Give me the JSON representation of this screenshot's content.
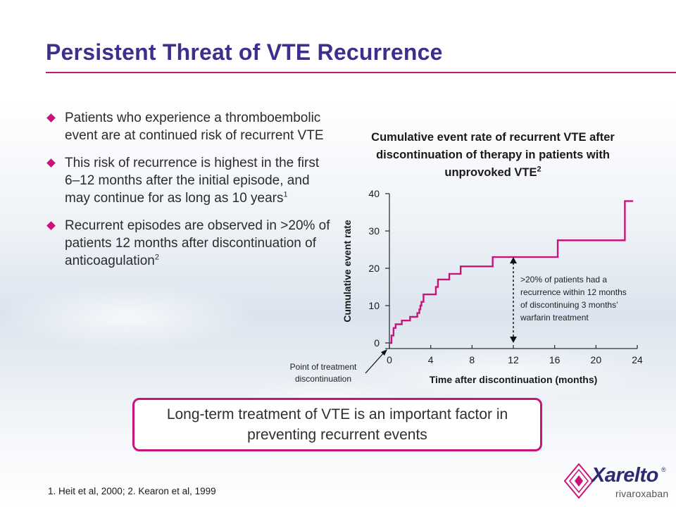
{
  "slide": {
    "title": "Persistent Threat of VTE Recurrence"
  },
  "bullets": [
    {
      "text": "Patients who experience a thromboembolic event are at continued risk of recurrent VTE",
      "sup": ""
    },
    {
      "text": "This risk of recurrence is highest in the first 6–12 months after the initial episode, and may continue for as long as 10 years",
      "sup": "1"
    },
    {
      "text": "Recurrent episodes are observed in >20% of patients 12 months after discontinuation of anticoagulation",
      "sup": "2"
    }
  ],
  "callout": {
    "text": "Long-term treatment of VTE is an important factor in preventing recurrent events"
  },
  "footnote": {
    "text": "1. Heit et al, 2000; 2. Kearon et al, 1999"
  },
  "logo": {
    "name": "Xarelto",
    "reg": "®",
    "sub": "rivaroxaban",
    "colors": {
      "primary": "#2d2a73",
      "accent": "#c8147a"
    }
  },
  "colors": {
    "title": "#3d2f8c",
    "accent": "#c8147a"
  },
  "chart_data": {
    "type": "line",
    "title": "Cumulative event rate of recurrent VTE after discontinuation of therapy in patients with unprovoked VTE",
    "title_sup": "2",
    "xlabel": "Time after discontinuation (months)",
    "ylabel": "Cumulative event rate",
    "xlim": [
      0,
      24
    ],
    "ylim": [
      0,
      40
    ],
    "xticks": [
      0,
      4,
      8,
      12,
      16,
      20,
      24
    ],
    "yticks": [
      0,
      10,
      20,
      30,
      40
    ],
    "grid": false,
    "step": true,
    "series": [
      {
        "color": "#c8147a",
        "points": [
          [
            0,
            0
          ],
          [
            0.2,
            2
          ],
          [
            0.4,
            4
          ],
          [
            0.6,
            5
          ],
          [
            1.0,
            5
          ],
          [
            1.2,
            6
          ],
          [
            1.8,
            6
          ],
          [
            2.0,
            7
          ],
          [
            2.6,
            7
          ],
          [
            2.7,
            8
          ],
          [
            2.9,
            9
          ],
          [
            3.0,
            10
          ],
          [
            3.1,
            11
          ],
          [
            3.3,
            13
          ],
          [
            4.4,
            13
          ],
          [
            4.5,
            15
          ],
          [
            4.7,
            17
          ],
          [
            5.6,
            17
          ],
          [
            5.8,
            18.5
          ],
          [
            6.7,
            18.5
          ],
          [
            6.9,
            20.5
          ],
          [
            9.8,
            20.5
          ],
          [
            10.0,
            23
          ],
          [
            16.2,
            23
          ],
          [
            16.3,
            27.5
          ],
          [
            22.7,
            27.5
          ],
          [
            22.8,
            38
          ],
          [
            23.6,
            38
          ]
        ]
      }
    ],
    "annotations": [
      {
        "text": ">20% of patients had a recurrence within 12 months of discontinuing 3 months’ warfarin treatment",
        "x": 12,
        "y_range": [
          0,
          23
        ]
      },
      {
        "text": "Point of treatment discontinuation",
        "x": 0,
        "y": 0
      }
    ]
  }
}
